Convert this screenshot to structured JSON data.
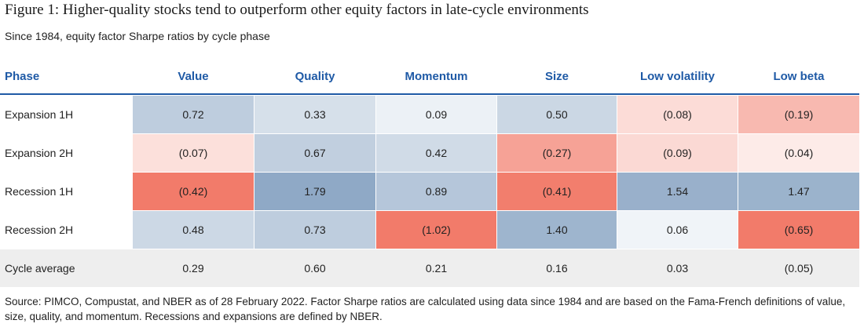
{
  "title": "Figure 1: Higher-quality stocks tend to outperform other equity factors in late-cycle environments",
  "subtitle": "Since 1984, equity factor Sharpe ratios by cycle phase",
  "footnote": "Source: PIMCO, Compustat, and NBER as of 28 February 2022. Factor Sharpe ratios are calculated using data since 1984 and are based on the Fama-French definitions of value, size, quality, and momentum. Recessions and expansions are defined by NBER.",
  "colors": {
    "header": "#1f5aa6",
    "rule": "#1f5aa6",
    "cycle_average_row": "#eeeeee",
    "positive_scale": "#8fa9c6",
    "negative_scale": "#f27b6a"
  },
  "chart_data": {
    "type": "heatmap",
    "title": "Figure 1: Higher-quality stocks tend to outperform other equity factors in late-cycle environments",
    "subtitle": "Since 1984, equity factor Sharpe ratios by cycle phase",
    "row_header": "Phase",
    "columns": [
      "Value",
      "Quality",
      "Momentum",
      "Size",
      "Low volatility",
      "Low beta"
    ],
    "rows": [
      {
        "phase": "Expansion 1H",
        "values": [
          0.72,
          0.33,
          0.09,
          0.5,
          -0.08,
          -0.19
        ],
        "labels": [
          "0.72",
          "0.33",
          "0.09",
          "0.50",
          "(0.08)",
          "(0.19)"
        ],
        "shaded": true
      },
      {
        "phase": "Expansion 2H",
        "values": [
          -0.07,
          0.67,
          0.42,
          -0.27,
          -0.09,
          -0.04
        ],
        "labels": [
          "(0.07)",
          "0.67",
          "0.42",
          "(0.27)",
          "(0.09)",
          "(0.04)"
        ],
        "shaded": true
      },
      {
        "phase": "Recession 1H",
        "values": [
          -0.42,
          1.79,
          0.89,
          -0.41,
          1.54,
          1.47
        ],
        "labels": [
          "(0.42)",
          "1.79",
          "0.89",
          "(0.41)",
          "1.54",
          "1.47"
        ],
        "shaded": true
      },
      {
        "phase": "Recession 2H",
        "values": [
          0.48,
          0.73,
          -1.02,
          1.4,
          0.06,
          -0.65
        ],
        "labels": [
          "0.48",
          "0.73",
          "(1.02)",
          "1.40",
          "0.06",
          "(0.65)"
        ],
        "shaded": true
      },
      {
        "phase": "Cycle average",
        "values": [
          0.29,
          0.6,
          0.21,
          0.16,
          0.03,
          -0.05
        ],
        "labels": [
          "0.29",
          "0.60",
          "0.21",
          "0.16",
          "0.03",
          "(0.05)"
        ],
        "shaded": false
      }
    ],
    "color_scale": {
      "positive_max": 1.79,
      "negative_max": -0.42
    }
  }
}
